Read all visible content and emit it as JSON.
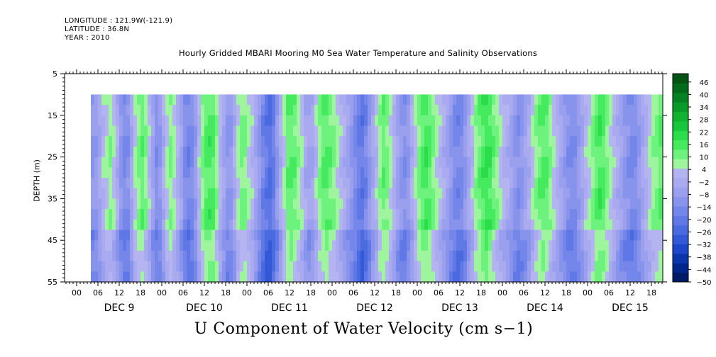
{
  "header": {
    "longitude": "LONGITUDE : 121.9W(-121.9)",
    "latitude": "LATITUDE : 36.8N",
    "year": "YEAR : 2010"
  },
  "chart_data": {
    "type": "heatmap",
    "title": "Hourly Gridded MBARI Mooring M0 Sea Water Temperature and Salinity Observations",
    "ylabel": "DEPTH (m)",
    "colorbar_title": "U Component of Water Velocity (cm s−1)",
    "y_range": [
      5,
      55
    ],
    "y_inverted": true,
    "y_ticks": [
      "5",
      "15",
      "25",
      "35",
      "45",
      "55"
    ],
    "x_hour_ticks": [
      "00",
      "06",
      "12",
      "18",
      "00",
      "06",
      "12",
      "18",
      "00",
      "06",
      "12",
      "18",
      "00",
      "06",
      "12",
      "18",
      "00",
      "06",
      "12",
      "18",
      "00",
      "06",
      "12",
      "18",
      "00",
      "06",
      "12",
      "18"
    ],
    "x_day_labels": [
      "DEC  9",
      "DEC 10",
      "DEC 11",
      "DEC 12",
      "DEC 13",
      "DEC 14",
      "DEC 15"
    ],
    "data_depth_range": [
      10,
      55
    ],
    "colorbar_levels": [
      "46",
      "40",
      "34",
      "28",
      "22",
      "16",
      "10",
      "4",
      "−2",
      "−8",
      "−14",
      "−20",
      "−26",
      "−32",
      "−38",
      "−44",
      "−50"
    ],
    "colormap": [
      "#001a66",
      "#00268c",
      "#0a35ad",
      "#1e46c8",
      "#3358d8",
      "#4a6ae0",
      "#6078e6",
      "#7486e9",
      "#8893ec",
      "#9aa0ee",
      "#a9aaef",
      "#b4b4f0",
      "#9ef59e",
      "#6ef27e",
      "#45ea5f",
      "#2bdc4b",
      "#18c83c",
      "#10b232",
      "#0a9a2a",
      "#068222",
      "#046a1b",
      "#035414"
    ],
    "u_profile_hourly_approx": [
      -10,
      -8,
      -4,
      2,
      6,
      8,
      4,
      -2,
      -10,
      -14,
      -12,
      -4,
      6,
      10,
      12,
      8,
      2,
      -6,
      -12,
      -10,
      -2,
      6,
      10,
      6,
      0,
      -6,
      -12,
      -16,
      -14,
      -8,
      2,
      10,
      14,
      16,
      14,
      8,
      0,
      -6,
      -10,
      -8,
      -2,
      6,
      10,
      10,
      6,
      2,
      -4,
      -10,
      -16,
      -20,
      -22,
      -18,
      -10,
      -2,
      6,
      12,
      14,
      12,
      8,
      4,
      -2,
      -6,
      -4,
      2,
      8,
      12,
      14,
      12,
      10,
      6,
      2,
      -2,
      -6,
      -10,
      -14,
      -18,
      -20,
      -16,
      -10,
      -4,
      2,
      8,
      12,
      10,
      6,
      0,
      -6,
      -10,
      -12,
      -8,
      -2,
      4,
      10,
      14,
      16,
      14,
      10,
      6,
      2,
      -2,
      -6,
      -10,
      -14,
      -16,
      -14,
      -10,
      -4,
      2,
      8,
      12,
      16,
      18,
      16,
      12,
      8,
      4,
      0,
      -2,
      -6,
      -10,
      -12,
      -10,
      -6,
      -2,
      4,
      8,
      12,
      14,
      12,
      8,
      4,
      0,
      -4,
      -8,
      -12,
      -14,
      -12,
      -8,
      -4,
      2,
      6,
      10,
      14,
      16,
      14,
      10,
      6,
      2,
      -2,
      -6,
      -10,
      -12,
      -14,
      -12,
      -8,
      -4,
      0,
      4,
      8,
      10,
      12,
      14,
      12,
      8,
      4,
      0,
      -4,
      -8,
      -12,
      -16,
      -18,
      -16
    ]
  }
}
